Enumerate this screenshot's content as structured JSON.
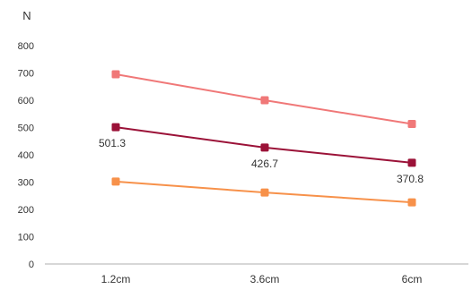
{
  "chart_data": {
    "type": "line",
    "title": "",
    "xlabel": "",
    "ylabel": "N",
    "categories": [
      "1.2cm",
      "3.6cm",
      "6cm"
    ],
    "ylim": [
      0,
      800
    ],
    "yticks": [
      0,
      100,
      200,
      300,
      400,
      500,
      600,
      700,
      800
    ],
    "grid": false,
    "series": [
      {
        "values": [
          695,
          600,
          513
        ],
        "color": "#f07878",
        "labels": [
          "",
          "",
          ""
        ]
      },
      {
        "values": [
          501.3,
          426.7,
          370.8
        ],
        "color": "#9b1238",
        "labels": [
          "501.3",
          "426.7",
          "370.8"
        ]
      },
      {
        "values": [
          302,
          262,
          226
        ],
        "color": "#f7914a",
        "labels": [
          "",
          "",
          ""
        ]
      }
    ]
  }
}
